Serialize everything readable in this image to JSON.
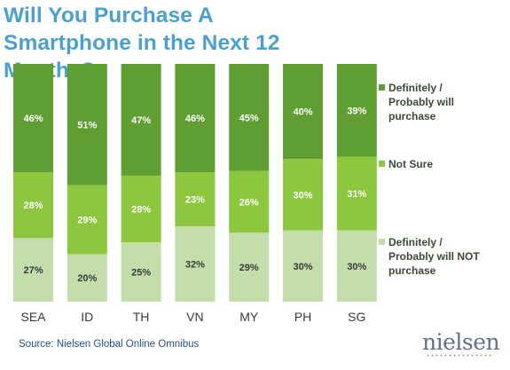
{
  "title": "Will You Purchase A Smartphone in the Next 12 Months?",
  "source": "Source: Nielsen Global Online Omnibus",
  "logo_text": "nielsen",
  "colors": {
    "title": "#4aa1cf",
    "will_purchase": "#5f9e33",
    "not_sure": "#8dc63f",
    "will_not": "#c3deaa",
    "label_light": "#ffffff",
    "label_dark": "#3a3a3a",
    "legend_text": "#3b4a38",
    "axis_text": "#3a3a3a"
  },
  "chart_data": {
    "type": "bar",
    "stacked": true,
    "categories": [
      "SEA",
      "ID",
      "TH",
      "VN",
      "MY",
      "PH",
      "SG"
    ],
    "series": [
      {
        "name": "Definitely / Probably will NOT purchase",
        "values": [
          27,
          20,
          25,
          32,
          29,
          30,
          30
        ]
      },
      {
        "name": "Not Sure",
        "values": [
          28,
          29,
          28,
          23,
          26,
          30,
          31
        ]
      },
      {
        "name": "Definitely / Probably will purchase",
        "values": [
          46,
          51,
          47,
          46,
          45,
          40,
          39
        ]
      }
    ],
    "value_format": "percent",
    "legend_position": "right",
    "grid": false
  }
}
